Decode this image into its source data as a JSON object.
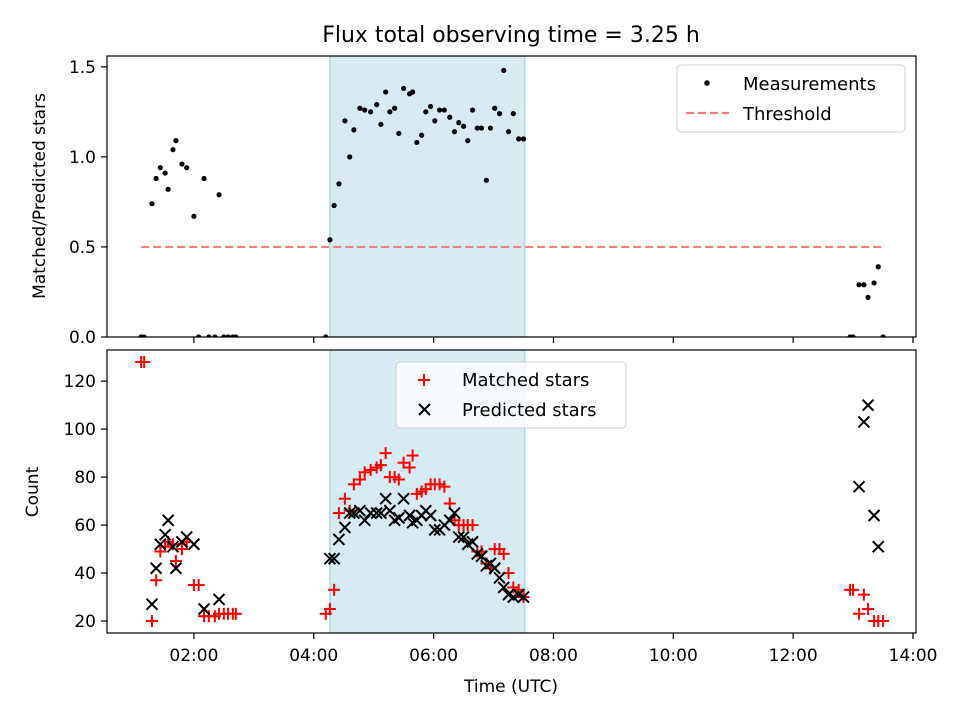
{
  "chart_data": [
    {
      "type": "scatter",
      "title": "Flux total observing time = 3.25 h",
      "xlabel": "",
      "ylabel": "Matched/Predicted stars",
      "xlim_hours": [
        0.55,
        14.05
      ],
      "ylim": [
        0,
        1.56
      ],
      "yticks": [
        0,
        0.5,
        1.0,
        1.5
      ],
      "ytick_labels": [
        "0.0",
        "0.5",
        "1.0",
        "1.5"
      ],
      "shaded_span_hours": [
        4.27,
        7.52
      ],
      "shade_color": "#add8e6",
      "legend": {
        "position": "top-right",
        "entries": [
          "Measurements",
          "Threshold"
        ]
      },
      "series": [
        {
          "name": "Measurements",
          "color": "#000000",
          "marker": "dot",
          "x": [
            1.12,
            1.17,
            1.3,
            1.37,
            1.44,
            1.52,
            1.57,
            1.65,
            1.7,
            1.8,
            1.88,
            2.0,
            2.08,
            2.17,
            2.25,
            2.35,
            2.42,
            2.5,
            2.57,
            2.65,
            2.7,
            4.2,
            4.27,
            4.34,
            4.42,
            4.52,
            4.6,
            4.67,
            4.77,
            4.85,
            4.95,
            5.05,
            5.12,
            5.2,
            5.27,
            5.35,
            5.42,
            5.5,
            5.6,
            5.65,
            5.72,
            5.8,
            5.87,
            5.95,
            6.02,
            6.1,
            6.18,
            6.27,
            6.35,
            6.42,
            6.5,
            6.57,
            6.65,
            6.73,
            6.8,
            6.88,
            6.95,
            7.02,
            7.1,
            7.17,
            7.25,
            7.33,
            7.42,
            7.5,
            12.95,
            13.0,
            13.1,
            13.18,
            13.25,
            13.35,
            13.42,
            13.5
          ],
          "y": [
            0.0,
            0.0,
            0.74,
            0.88,
            0.94,
            0.91,
            0.82,
            1.04,
            1.09,
            0.96,
            0.94,
            0.67,
            0.0,
            0.88,
            0.0,
            0.0,
            0.79,
            0.0,
            0.0,
            0.0,
            0.0,
            0.0,
            0.54,
            0.73,
            0.85,
            1.2,
            1.0,
            1.15,
            1.27,
            1.26,
            1.25,
            1.29,
            1.18,
            1.36,
            1.25,
            1.27,
            1.13,
            1.38,
            1.35,
            1.36,
            1.08,
            1.12,
            1.25,
            1.28,
            1.2,
            1.26,
            1.26,
            1.22,
            1.14,
            1.19,
            1.17,
            1.09,
            1.26,
            1.16,
            1.16,
            0.87,
            1.16,
            1.27,
            1.24,
            1.48,
            1.14,
            1.24,
            1.1,
            1.1,
            0.0,
            0.0,
            0.29,
            0.29,
            0.22,
            0.3,
            0.39,
            0.0
          ]
        },
        {
          "name": "Threshold",
          "color": "#f08080",
          "style": "dashed",
          "x": [
            1.12,
            13.5
          ],
          "y": [
            0.5,
            0.5
          ]
        }
      ]
    },
    {
      "type": "scatter",
      "title": "",
      "xlabel": "Time (UTC)",
      "ylabel": "Count",
      "xlim_hours": [
        0.55,
        14.05
      ],
      "xticks_hours": [
        2,
        4,
        6,
        8,
        10,
        12,
        14
      ],
      "xtick_labels": [
        "02:00",
        "04:00",
        "06:00",
        "08:00",
        "10:00",
        "12:00",
        "14:00"
      ],
      "ylim": [
        15,
        133
      ],
      "yticks": [
        20,
        40,
        60,
        80,
        100,
        120
      ],
      "ytick_labels": [
        "20",
        "40",
        "60",
        "80",
        "100",
        "120"
      ],
      "shaded_span_hours": [
        4.27,
        7.52
      ],
      "shade_color": "#add8e6",
      "legend": {
        "position": "top-center",
        "entries": [
          "Matched stars",
          "Predicted stars"
        ]
      },
      "series": [
        {
          "name": "Matched stars",
          "color": "#ff0000",
          "marker": "plus",
          "x": [
            1.12,
            1.17,
            1.3,
            1.37,
            1.44,
            1.52,
            1.57,
            1.65,
            1.7,
            1.8,
            1.88,
            2.0,
            2.08,
            2.17,
            2.25,
            2.35,
            2.42,
            2.5,
            2.57,
            2.65,
            2.7,
            4.2,
            4.27,
            4.34,
            4.42,
            4.52,
            4.6,
            4.67,
            4.77,
            4.85,
            4.95,
            5.05,
            5.12,
            5.2,
            5.27,
            5.35,
            5.42,
            5.5,
            5.6,
            5.65,
            5.72,
            5.8,
            5.87,
            5.95,
            6.02,
            6.1,
            6.18,
            6.27,
            6.35,
            6.42,
            6.5,
            6.57,
            6.65,
            6.73,
            6.8,
            6.88,
            6.95,
            7.02,
            7.1,
            7.17,
            7.25,
            7.33,
            7.42,
            7.5,
            12.95,
            13.0,
            13.1,
            13.18,
            13.25,
            13.35,
            13.42,
            13.5
          ],
          "y": [
            128,
            128,
            20,
            37,
            49,
            51,
            53,
            52,
            45,
            50,
            53,
            35,
            35,
            22,
            22,
            22,
            23,
            23,
            23,
            23,
            23,
            23,
            25,
            33,
            65,
            71,
            66,
            77,
            79,
            82,
            83,
            84,
            85,
            90,
            80,
            80,
            79,
            86,
            84,
            89,
            73,
            74,
            75,
            77,
            77,
            77,
            76,
            69,
            62,
            60,
            60,
            60,
            60,
            49,
            49,
            44,
            42,
            50,
            50,
            48,
            40,
            34,
            33,
            30,
            33,
            33,
            23,
            31,
            25,
            20,
            20,
            20
          ],
          "x_matched_note": ""
        },
        {
          "name": "Predicted stars",
          "color": "#000000",
          "marker": "x",
          "x": [
            1.3,
            1.37,
            1.44,
            1.52,
            1.57,
            1.65,
            1.7,
            1.8,
            1.88,
            2.0,
            2.17,
            2.42,
            4.27,
            4.34,
            4.42,
            4.52,
            4.6,
            4.67,
            4.77,
            4.85,
            4.95,
            5.05,
            5.12,
            5.2,
            5.27,
            5.35,
            5.42,
            5.5,
            5.6,
            5.65,
            5.72,
            5.8,
            5.87,
            5.95,
            6.02,
            6.1,
            6.18,
            6.27,
            6.35,
            6.42,
            6.5,
            6.57,
            6.65,
            6.73,
            6.8,
            6.88,
            6.95,
            7.02,
            7.1,
            7.17,
            7.25,
            7.33,
            7.42,
            7.5,
            13.1,
            13.18,
            13.25,
            13.35,
            13.42
          ],
          "y": [
            27,
            42,
            52,
            56,
            62,
            51,
            42,
            53,
            55,
            52,
            25,
            29,
            46,
            46,
            54,
            59,
            65,
            65,
            66,
            62,
            65,
            65,
            65,
            71,
            66,
            62,
            63,
            71,
            64,
            61,
            62,
            64,
            66,
            64,
            58,
            58,
            60,
            62,
            65,
            55,
            55,
            52,
            53,
            48,
            47,
            43,
            44,
            42,
            38,
            34,
            31,
            30,
            31,
            30,
            76,
            103,
            110,
            64,
            51
          ]
        }
      ]
    }
  ]
}
